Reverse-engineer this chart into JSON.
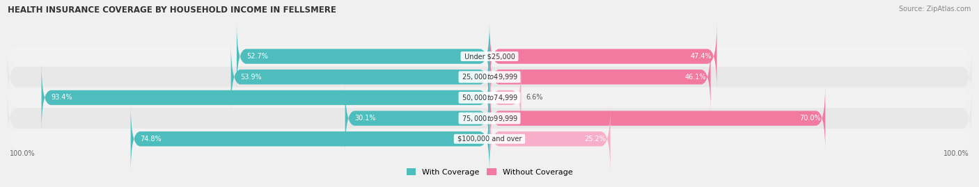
{
  "title": "HEALTH INSURANCE COVERAGE BY HOUSEHOLD INCOME IN FELLSMERE",
  "source": "Source: ZipAtlas.com",
  "categories": [
    "Under $25,000",
    "$25,000 to $49,999",
    "$50,000 to $74,999",
    "$75,000 to $99,999",
    "$100,000 and over"
  ],
  "with_coverage": [
    52.7,
    53.9,
    93.4,
    30.1,
    74.8
  ],
  "without_coverage": [
    47.4,
    46.1,
    6.6,
    70.0,
    25.2
  ],
  "color_with": "#4dbdbd",
  "color_without": "#f279a0",
  "color_without_light": "#f7aec8",
  "row_bg": [
    "#f2f2f2",
    "#e8e8e8"
  ],
  "legend_with": "With Coverage",
  "legend_without": "Without Coverage",
  "bottom_left_label": "100.0%",
  "bottom_right_label": "100.0%",
  "fig_bg": "#f0f0f0"
}
